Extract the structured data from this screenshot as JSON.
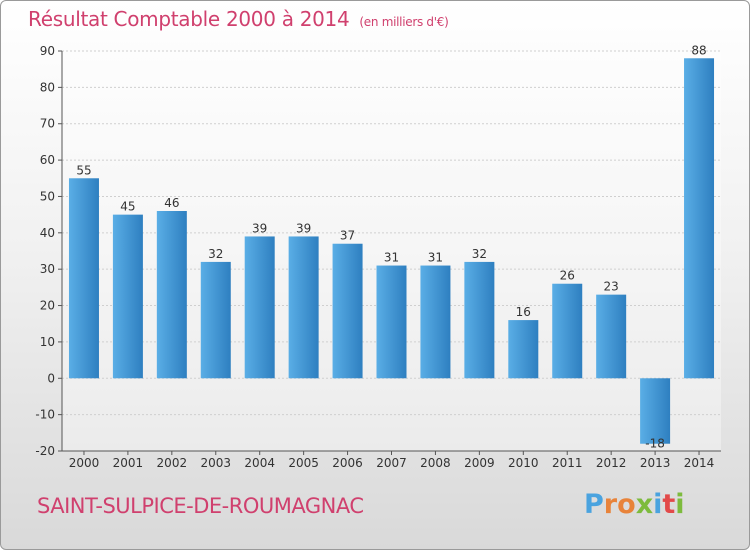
{
  "header": {
    "title": "Résultat Comptable 2000 à 2014",
    "subtitle": "(en milliers d'€)"
  },
  "footer": {
    "city": "SAINT-SULPICE-DE-ROUMAGNAC",
    "logo": [
      "P",
      "r",
      "o",
      "x",
      "i",
      "t",
      "i"
    ]
  },
  "colors": {
    "title": "#d0406e",
    "bar_light": "#5aaee6",
    "bar_dark": "#2e7fc0",
    "logo": [
      "#4aa3df",
      "#e8833a",
      "#e8833a",
      "#7dbb3d",
      "#4aa3df",
      "#e24a4a",
      "#7dbb3d"
    ]
  },
  "chart_data": {
    "type": "bar",
    "title": "Résultat Comptable 2000 à 2014",
    "ylabel": "en milliers d'€",
    "xlabel": "",
    "categories": [
      "2000",
      "2001",
      "2002",
      "2003",
      "2004",
      "2005",
      "2006",
      "2007",
      "2008",
      "2009",
      "2010",
      "2011",
      "2012",
      "2013",
      "2014"
    ],
    "values": [
      55,
      45,
      46,
      32,
      39,
      39,
      37,
      31,
      31,
      32,
      16,
      26,
      23,
      -18,
      88
    ],
    "ylim": [
      -20,
      90
    ],
    "yticks": [
      -20,
      -10,
      0,
      10,
      20,
      30,
      40,
      50,
      60,
      70,
      80,
      90
    ],
    "grid": true
  }
}
